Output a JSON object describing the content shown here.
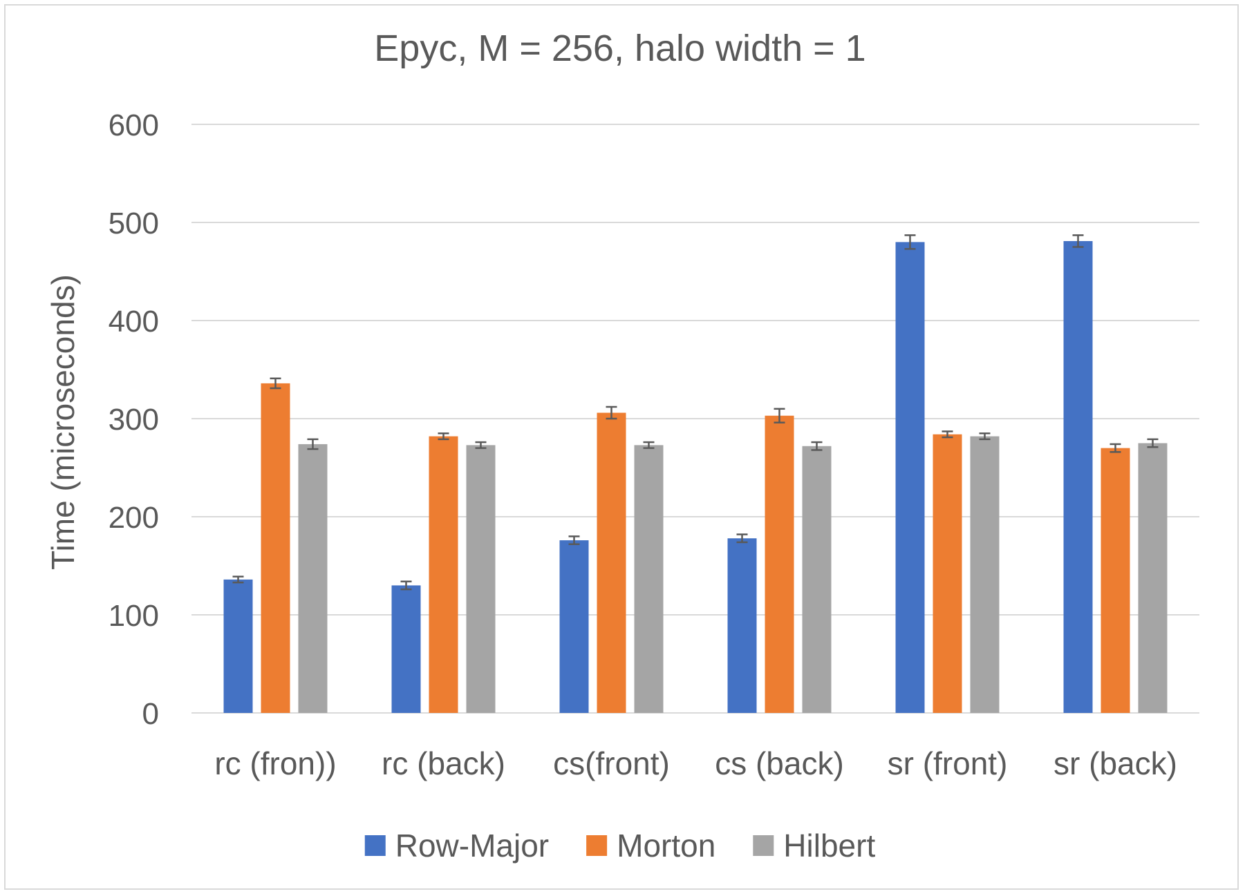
{
  "chart_data": {
    "type": "bar",
    "title": "Epyc, M = 256, halo width = 1",
    "xlabel": "",
    "ylabel": "Time (microseconds)",
    "ylim": [
      0,
      600
    ],
    "yticks": [
      0,
      100,
      200,
      300,
      400,
      500,
      600
    ],
    "grid": true,
    "legend_position": "bottom",
    "categories": [
      "rc (fron))",
      "rc (back)",
      "cs(front)",
      "cs (back)",
      "sr (front)",
      "sr (back)"
    ],
    "series": [
      {
        "name": "Row-Major",
        "color": "#4472C4",
        "values": [
          136,
          130,
          176,
          178,
          480,
          481
        ],
        "errors": [
          3,
          4,
          4,
          4,
          7,
          6
        ]
      },
      {
        "name": "Morton",
        "color": "#ED7D31",
        "values": [
          336,
          282,
          306,
          303,
          284,
          270
        ],
        "errors": [
          5,
          3,
          6,
          7,
          3,
          4
        ]
      },
      {
        "name": "Hilbert",
        "color": "#A5A5A5",
        "values": [
          274,
          273,
          273,
          272,
          282,
          275
        ],
        "errors": [
          5,
          3,
          3,
          4,
          3,
          4
        ]
      }
    ]
  }
}
